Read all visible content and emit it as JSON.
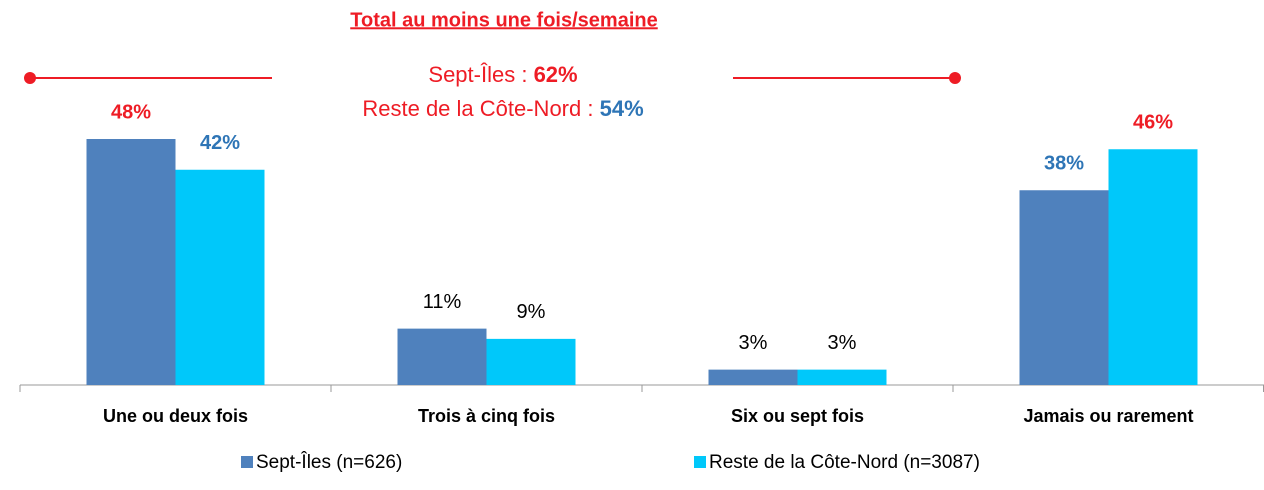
{
  "chart_data": {
    "type": "bar",
    "categories": [
      "Une ou deux fois",
      "Trois à cinq fois",
      "Six ou sept fois",
      "Jamais ou rarement"
    ],
    "series": [
      {
        "name": "Sept-Îles (n=626)",
        "color": "#4f81bd",
        "values": [
          48,
          11,
          3,
          38
        ],
        "value_labels": [
          "48%",
          "11%",
          "3%",
          "38%"
        ],
        "label_colors": [
          "#ee1c25",
          "#000000",
          "#000000",
          "#2e75b6"
        ],
        "label_weights": [
          "bold",
          "normal",
          "normal",
          "bold"
        ]
      },
      {
        "name": "Reste de la Côte-Nord (n=3087)",
        "color": "#00c8fa",
        "values": [
          42,
          9,
          3,
          46
        ],
        "value_labels": [
          "42%",
          "9%",
          "3%",
          "46%"
        ],
        "label_colors": [
          "#2e75b6",
          "#000000",
          "#000000",
          "#ee1c25"
        ],
        "label_weights": [
          "bold",
          "normal",
          "normal",
          "bold"
        ]
      }
    ],
    "ylim": [
      0,
      50
    ],
    "legend": "bottom",
    "annotation": {
      "title": "Total au moins une fois/semaine",
      "lines": [
        {
          "label": "Sept-Îles :",
          "value": 62,
          "value_label": "62%",
          "value_color": "#ee1c25"
        },
        {
          "label": "Reste de la Côte-Nord :",
          "value": 54,
          "value_label": "54%",
          "value_color": "#2e75b6"
        }
      ]
    }
  }
}
